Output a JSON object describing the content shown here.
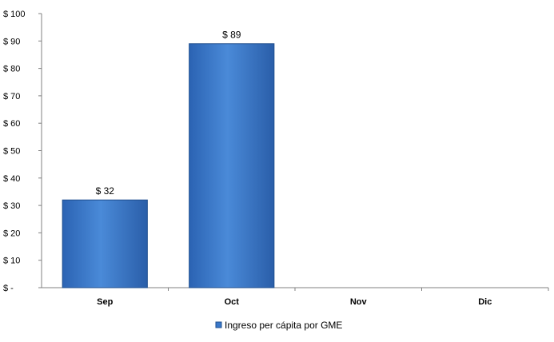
{
  "chart_data": {
    "type": "bar",
    "categories": [
      "Sep",
      "Oct",
      "Nov",
      "Dic"
    ],
    "series": [
      {
        "name": "Ingreso per cápita por GME",
        "values": [
          32,
          89,
          null,
          null
        ]
      }
    ],
    "data_labels": [
      "$ 32",
      "$ 89",
      "",
      ""
    ],
    "y_tick_labels": [
      "$ -",
      "$ 10",
      "$ 20",
      "$ 30",
      "$ 40",
      "$ 50",
      "$ 60",
      "$ 70",
      "$ 80",
      "$ 90",
      "$ 100"
    ],
    "y_ticks": [
      0,
      10,
      20,
      30,
      40,
      50,
      60,
      70,
      80,
      90,
      100
    ],
    "ylim": [
      0,
      100
    ],
    "grid": false,
    "legend_position": "bottom",
    "colors": {
      "bar": "#3a78c9",
      "bar_edge": "#1f4f8f",
      "axis": "#808080"
    }
  }
}
